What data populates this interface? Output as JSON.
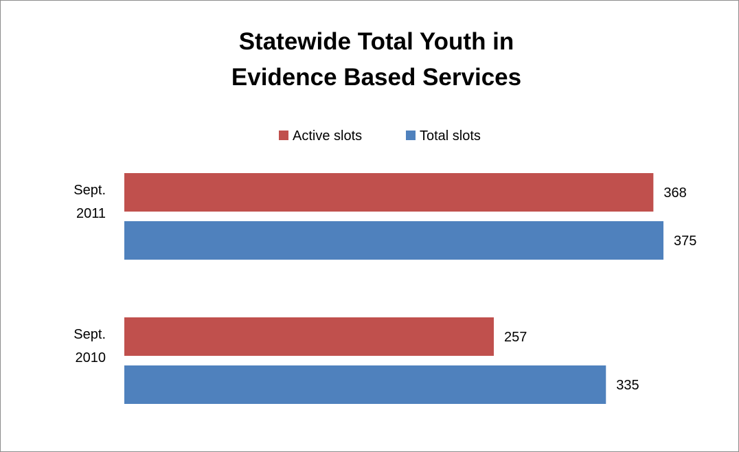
{
  "chart_data": {
    "type": "bar",
    "orientation": "horizontal",
    "title_lines": [
      "Statewide Total Youth in",
      "Evidence Based Services"
    ],
    "categories": [
      {
        "lines": [
          "Sept.",
          "2011"
        ]
      },
      {
        "lines": [
          "Sept.",
          "2010"
        ]
      }
    ],
    "series": [
      {
        "name": "Active slots",
        "color": "#C0504D",
        "values": [
          368,
          257
        ]
      },
      {
        "name": "Total slots",
        "color": "#4F81BD",
        "values": [
          375,
          335
        ]
      }
    ],
    "xlim": [
      0,
      375
    ],
    "grid": false,
    "legend_position": "top",
    "data_labels": true
  }
}
